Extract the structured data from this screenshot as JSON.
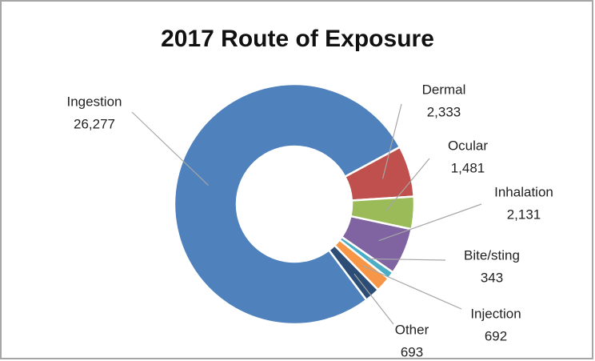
{
  "chart_data": {
    "type": "donut",
    "title": "2017 Route of Exposure",
    "categories": [
      "Ingestion",
      "Dermal",
      "Ocular",
      "Inhalation",
      "Bite/sting",
      "Injection",
      "Other"
    ],
    "values": [
      26277,
      2333,
      1481,
      2131,
      343,
      692,
      693
    ],
    "value_labels": [
      "26,277",
      "2,333",
      "1,481",
      "2,131",
      "343",
      "692",
      "693"
    ],
    "colors": [
      "#4f81bd",
      "#c0504d",
      "#9bbb59",
      "#8064a2",
      "#4bacc6",
      "#f79646",
      "#2c4d75"
    ]
  }
}
